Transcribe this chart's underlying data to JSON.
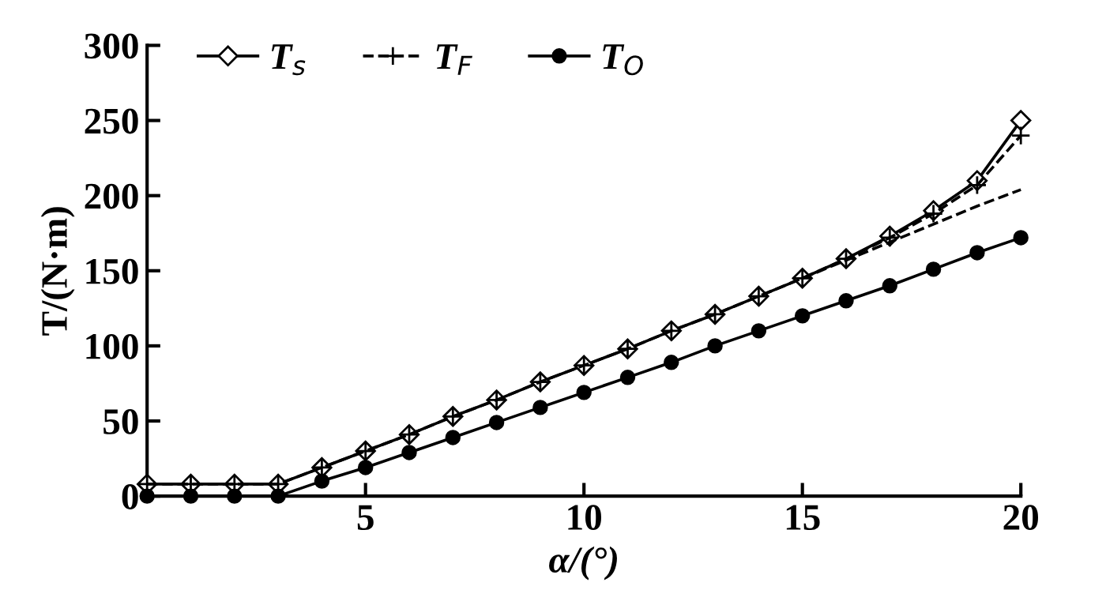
{
  "chart_data": {
    "type": "line",
    "xlabel": "α/(°)",
    "ylabel": "T/(N·m)",
    "x": [
      0,
      1,
      2,
      3,
      4,
      5,
      6,
      7,
      8,
      9,
      10,
      11,
      12,
      13,
      14,
      15,
      16,
      17,
      18,
      19,
      20
    ],
    "series": [
      {
        "name": "T$_{s}$",
        "color": "#000000",
        "marker": "diamond",
        "line_style": "solid",
        "values": [
          8,
          8,
          8,
          8,
          19,
          30,
          41,
          53,
          64,
          76,
          87,
          98,
          110,
          121,
          133,
          145,
          158,
          173,
          190,
          210,
          250
        ]
      },
      {
        "name": "T$_{F}$",
        "color": "#000000",
        "marker": "cross",
        "line_style": "dashed",
        "values": [
          8,
          8,
          8,
          8,
          19,
          30,
          41,
          53,
          64,
          76,
          87,
          98,
          110,
          121,
          133,
          145,
          158,
          172,
          188,
          207,
          240
        ]
      },
      {
        "color": "#000000",
        "marker": "none",
        "line_style": "dashed",
        "x": [
          15,
          16,
          17,
          18,
          19,
          20
        ],
        "values": [
          145,
          157,
          169,
          181,
          193,
          204
        ]
      },
      {
        "name": "T$_{O}$",
        "color": "#000000",
        "marker": "circle",
        "line_style": "solid",
        "values": [
          0,
          0,
          0,
          0,
          10,
          19,
          29,
          39,
          49,
          59,
          69,
          79,
          89,
          100,
          110,
          120,
          130,
          140,
          151,
          162,
          172
        ]
      }
    ],
    "xlim": [
      0,
      20
    ],
    "xticks": [
      {
        "value": 0,
        "label": null
      },
      5,
      10,
      15,
      20
    ],
    "ylim": [
      0,
      300
    ],
    "yticks": [
      0,
      50,
      100,
      150,
      200,
      250,
      300
    ],
    "grid": false,
    "legend": "top left"
  }
}
